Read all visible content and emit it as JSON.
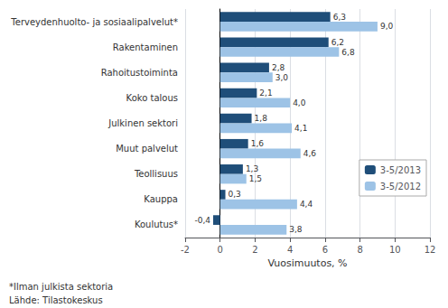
{
  "chart_data": {
    "type": "bar",
    "orientation": "horizontal",
    "categories": [
      "Terveydenhuolto- ja sosiaalipalvelut*",
      "Rakentaminen",
      "Rahoitustoiminta",
      "Koko talous",
      "Julkinen sektori",
      "Muut palvelut",
      "Teollisuus",
      "Kauppa",
      "Koulutus*"
    ],
    "series": [
      {
        "name": "3-5/2013",
        "color": "#1F4E79",
        "values": [
          6.3,
          6.2,
          2.8,
          2.1,
          1.8,
          1.6,
          1.3,
          0.3,
          -0.4
        ],
        "value_labels": [
          "6,3",
          "6,2",
          "2,8",
          "2,1",
          "1,8",
          "1,6",
          "1,3",
          "0,3",
          "-0,4"
        ]
      },
      {
        "name": "3-5/2012",
        "color": "#9DC3E6",
        "values": [
          9.0,
          6.8,
          3.0,
          4.0,
          4.1,
          4.6,
          1.5,
          4.4,
          3.8
        ],
        "value_labels": [
          "9,0",
          "6,8",
          "3,0",
          "4,0",
          "4,1",
          "4,6",
          "1,5",
          "4,4",
          "3,8"
        ]
      }
    ],
    "xlabel": "Vuosimuutos, %",
    "xlim": [
      -2,
      12
    ],
    "xticks": [
      -2,
      0,
      2,
      4,
      6,
      8,
      10,
      12
    ],
    "grid": true,
    "legend": "lower right",
    "data_labels": true,
    "annotations": [
      "*Ilman julkista sektoria",
      "Lähde: Tilastokeskus"
    ]
  }
}
